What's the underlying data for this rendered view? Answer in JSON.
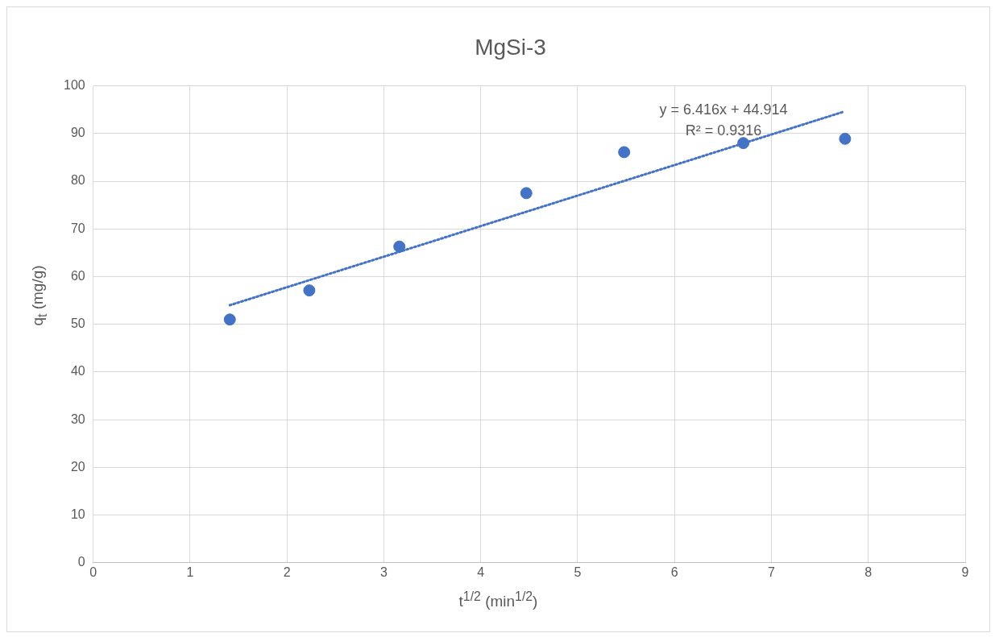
{
  "chart_data": {
    "type": "scatter",
    "title": "MgSi-3",
    "xlabel": "t$^{1/2}$ (min$^{1/2}$)",
    "ylabel": "q$_{t}$ (mg/g)",
    "xlim": [
      0,
      9
    ],
    "xticks": [
      0,
      1,
      2,
      3,
      4,
      5,
      6,
      7,
      8,
      9
    ],
    "ylim": [
      0,
      100
    ],
    "yticks": [
      0,
      10,
      20,
      30,
      40,
      50,
      60,
      70,
      80,
      90,
      100
    ],
    "grid": true,
    "series": [
      {
        "color": "#4472c4",
        "marker": "circle",
        "x": [
          1.41,
          2.23,
          3.16,
          4.47,
          5.48,
          6.71,
          7.76
        ],
        "values": [
          51.0,
          57.1,
          66.3,
          77.5,
          86.1,
          88.0,
          88.9
        ]
      },
      {
        "type": "line",
        "color": "#4472c4",
        "marker": "none",
        "line_style": "dotted",
        "x": [
          1.41,
          7.75
        ],
        "values": [
          54.0,
          94.6
        ]
      }
    ],
    "annotations": [
      "y = 6.416x + 44.914",
      "R² = 0.9316"
    ]
  }
}
